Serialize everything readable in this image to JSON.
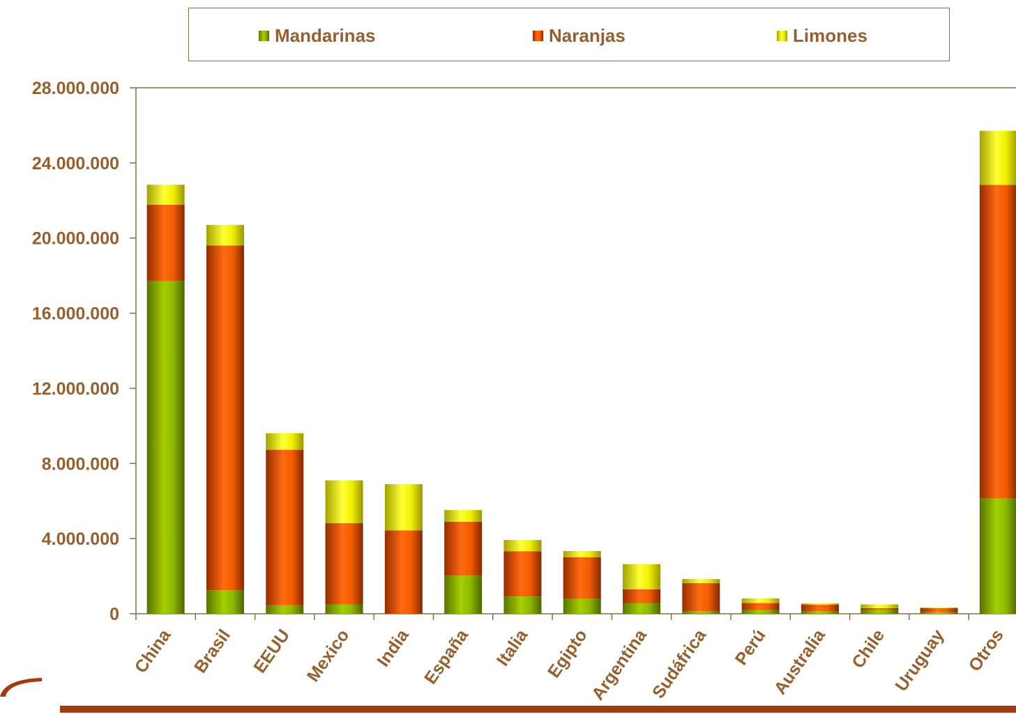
{
  "chart_data": {
    "type": "bar",
    "stacked": true,
    "categories": [
      "China",
      "Brasil",
      "EEUU",
      "Mexico",
      "India",
      "España",
      "Italia",
      "Egipto",
      "Argentina",
      "Sudáfrica",
      "Perú",
      "Australia",
      "Chile",
      "Uruguay",
      "Otros"
    ],
    "series": [
      {
        "name": "Mandarinas",
        "values": [
          17700000,
          1250000,
          450000,
          500000,
          0,
          2030000,
          920000,
          790000,
          560000,
          150000,
          200000,
          150000,
          200000,
          80000,
          6130000
        ]
      },
      {
        "name": "Naranjas",
        "values": [
          4070000,
          18350000,
          8280000,
          4320000,
          4440000,
          2870000,
          2410000,
          2220000,
          740000,
          1480000,
          370000,
          330000,
          100000,
          220000,
          16700000
        ]
      },
      {
        "name": "Limones",
        "values": [
          1070000,
          1100000,
          880000,
          2280000,
          2460000,
          620000,
          600000,
          330000,
          1340000,
          220000,
          250000,
          70000,
          200000,
          30000,
          2880000
        ]
      }
    ],
    "yticks": [
      "0",
      "4.000.000",
      "8.000.000",
      "12.000.000",
      "16.000.000",
      "20.000.000",
      "24.000.000",
      "28.000.000"
    ],
    "ylim": [
      0,
      28000000
    ],
    "legend_position": "top",
    "grid": false,
    "colors": {
      "Mandarinas": "#8fbc00",
      "Naranjas": "#ff6600",
      "Limones": "#ffff00",
      "text": "#96602e",
      "axis": "#8b6d3a",
      "footer": "#a33a0d"
    }
  }
}
